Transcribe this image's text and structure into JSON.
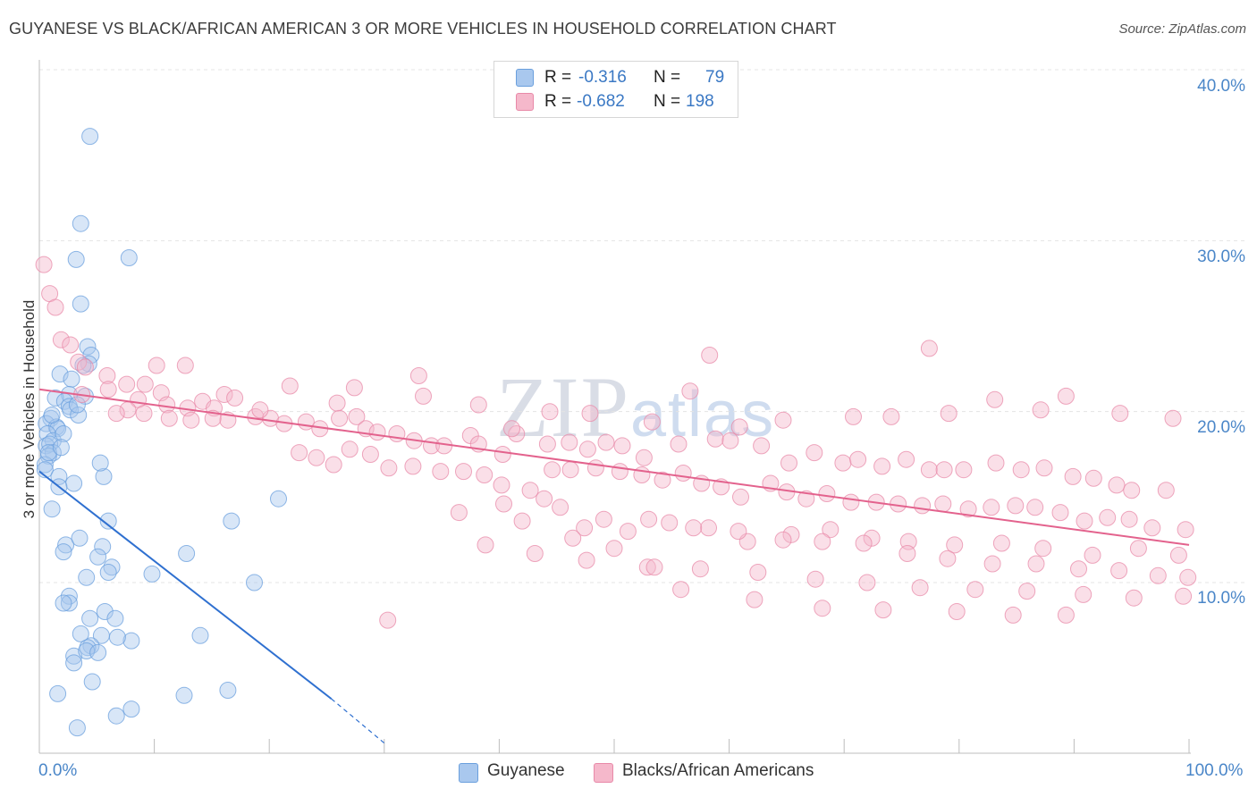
{
  "header": {
    "title": "GUYANESE VS BLACK/AFRICAN AMERICAN 3 OR MORE VEHICLES IN HOUSEHOLD CORRELATION CHART",
    "source": "Source: ZipAtlas.com"
  },
  "watermark": {
    "zip": "ZIP",
    "atlas": "atlas"
  },
  "legend": {
    "rows": [
      {
        "r_label": "R =",
        "r_value": "-0.316",
        "n_label": "N =",
        "n_value": "79",
        "color": "#a9c8ee"
      },
      {
        "r_label": "R =",
        "r_value": "-0.682",
        "n_label": "N =",
        "n_value": "198",
        "color": "#f5b8cb"
      }
    ]
  },
  "bottom_legend": {
    "items": [
      {
        "label": "Guyanese",
        "color": "#a9c8ee"
      },
      {
        "label": "Blacks/African Americans",
        "color": "#f5b8cb"
      }
    ]
  },
  "chart_data": {
    "type": "scatter",
    "title": "GUYANESE VS BLACK/AFRICAN AMERICAN 3 OR MORE VEHICLES IN HOUSEHOLD CORRELATION CHART",
    "xlabel": "",
    "ylabel": "3 or more Vehicles in Household",
    "xlim": [
      0,
      100
    ],
    "ylim": [
      0,
      40
    ],
    "x_tick_labels": [
      "0.0%",
      "100.0%"
    ],
    "y_ticks": [
      10,
      20,
      30,
      40
    ],
    "y_tick_labels": [
      "10.0%",
      "20.0%",
      "30.0%",
      "40.0%"
    ],
    "grid": true,
    "legend_position": "top-center",
    "series": [
      {
        "name": "Guyanese",
        "color": "#6a9fdd",
        "fill": "#a9c8ee",
        "trend_color": "#2f70d0",
        "trend": {
          "x0": 0,
          "y0": 16.5,
          "x1": 25.4,
          "y1": 3.2,
          "dash_to_x": 30.2,
          "dash_to_y": 0.5
        },
        "points": [
          [
            4.4,
            36.1
          ],
          [
            3.6,
            31.0
          ],
          [
            3.2,
            28.9
          ],
          [
            7.8,
            29.0
          ],
          [
            3.6,
            26.3
          ],
          [
            4.2,
            23.8
          ],
          [
            4.5,
            23.3
          ],
          [
            4.3,
            22.8
          ],
          [
            3.8,
            22.7
          ],
          [
            1.8,
            22.2
          ],
          [
            2.8,
            21.9
          ],
          [
            2.6,
            21.0
          ],
          [
            1.4,
            20.8
          ],
          [
            2.2,
            20.6
          ],
          [
            2.6,
            20.3
          ],
          [
            2.7,
            20.1
          ],
          [
            3.4,
            19.8
          ],
          [
            1.0,
            19.6
          ],
          [
            0.6,
            19.3
          ],
          [
            1.5,
            19.1
          ],
          [
            1.6,
            19.0
          ],
          [
            0.7,
            18.7
          ],
          [
            1.2,
            18.3
          ],
          [
            0.6,
            18.0
          ],
          [
            0.9,
            18.1
          ],
          [
            1.2,
            17.6
          ],
          [
            0.8,
            17.4
          ],
          [
            0.5,
            16.9
          ],
          [
            0.5,
            16.6
          ],
          [
            1.7,
            16.2
          ],
          [
            5.6,
            16.2
          ],
          [
            3.0,
            15.8
          ],
          [
            1.7,
            15.6
          ],
          [
            5.3,
            17.0
          ],
          [
            1.1,
            14.3
          ],
          [
            20.8,
            14.9
          ],
          [
            6.0,
            13.6
          ],
          [
            16.7,
            13.6
          ],
          [
            2.3,
            12.2
          ],
          [
            3.5,
            12.6
          ],
          [
            5.5,
            12.1
          ],
          [
            2.1,
            11.8
          ],
          [
            5.1,
            11.5
          ],
          [
            12.8,
            11.7
          ],
          [
            6.3,
            10.9
          ],
          [
            6.0,
            10.6
          ],
          [
            4.1,
            10.3
          ],
          [
            9.8,
            10.5
          ],
          [
            18.7,
            10.0
          ],
          [
            2.6,
            9.2
          ],
          [
            2.6,
            8.8
          ],
          [
            2.1,
            8.8
          ],
          [
            5.7,
            8.3
          ],
          [
            6.6,
            7.9
          ],
          [
            4.4,
            7.9
          ],
          [
            3.6,
            7.0
          ],
          [
            5.4,
            6.9
          ],
          [
            8.0,
            6.6
          ],
          [
            14.0,
            6.9
          ],
          [
            6.8,
            6.8
          ],
          [
            4.5,
            6.3
          ],
          [
            4.2,
            6.2
          ],
          [
            3.0,
            5.7
          ],
          [
            4.1,
            6.0
          ],
          [
            5.1,
            5.9
          ],
          [
            3.0,
            5.3
          ],
          [
            4.6,
            4.2
          ],
          [
            1.6,
            3.5
          ],
          [
            12.6,
            3.4
          ],
          [
            16.4,
            3.7
          ],
          [
            8.0,
            2.6
          ],
          [
            6.7,
            2.2
          ],
          [
            3.3,
            1.5
          ],
          [
            1.1,
            19.8
          ],
          [
            2.1,
            18.7
          ],
          [
            4.0,
            20.9
          ],
          [
            0.8,
            17.6
          ],
          [
            1.9,
            17.9
          ],
          [
            3.3,
            20.4
          ]
        ]
      },
      {
        "name": "Blacks/African Americans",
        "color": "#e889a8",
        "fill": "#f5b8cb",
        "trend_color": "#e3628d",
        "trend": {
          "x0": 0,
          "y0": 21.3,
          "x1": 100,
          "y1": 12.2
        },
        "points": [
          [
            0.4,
            28.6
          ],
          [
            0.9,
            26.9
          ],
          [
            1.4,
            26.1
          ],
          [
            1.9,
            24.2
          ],
          [
            2.7,
            23.9
          ],
          [
            3.4,
            22.9
          ],
          [
            4.0,
            22.6
          ],
          [
            5.9,
            22.1
          ],
          [
            10.2,
            22.7
          ],
          [
            12.7,
            22.7
          ],
          [
            7.6,
            21.6
          ],
          [
            9.2,
            21.6
          ],
          [
            6.0,
            21.3
          ],
          [
            10.6,
            21.1
          ],
          [
            3.7,
            21.0
          ],
          [
            8.6,
            20.7
          ],
          [
            16.1,
            21.0
          ],
          [
            17.0,
            20.8
          ],
          [
            14.2,
            20.6
          ],
          [
            11.1,
            20.4
          ],
          [
            12.9,
            20.2
          ],
          [
            15.2,
            20.2
          ],
          [
            7.7,
            20.1
          ],
          [
            9.1,
            19.9
          ],
          [
            6.7,
            19.9
          ],
          [
            11.3,
            19.6
          ],
          [
            13.2,
            19.5
          ],
          [
            16.4,
            19.5
          ],
          [
            18.8,
            19.7
          ],
          [
            20.1,
            19.6
          ],
          [
            21.3,
            19.3
          ],
          [
            23.2,
            19.4
          ],
          [
            24.4,
            19.0
          ],
          [
            26.1,
            19.6
          ],
          [
            27.6,
            19.7
          ],
          [
            28.4,
            19.0
          ],
          [
            29.4,
            18.8
          ],
          [
            31.1,
            18.7
          ],
          [
            32.6,
            18.3
          ],
          [
            34.1,
            18.0
          ],
          [
            35.2,
            18.0
          ],
          [
            37.5,
            18.6
          ],
          [
            38.2,
            18.1
          ],
          [
            40.3,
            17.5
          ],
          [
            41.5,
            18.7
          ],
          [
            44.2,
            18.1
          ],
          [
            46.1,
            18.2
          ],
          [
            47.7,
            17.8
          ],
          [
            49.3,
            18.2
          ],
          [
            50.7,
            18.0
          ],
          [
            52.6,
            17.3
          ],
          [
            55.6,
            18.1
          ],
          [
            58.8,
            18.4
          ],
          [
            60.1,
            18.3
          ],
          [
            62.8,
            18.0
          ],
          [
            65.2,
            17.0
          ],
          [
            67.4,
            17.6
          ],
          [
            69.9,
            17.0
          ],
          [
            71.2,
            17.2
          ],
          [
            73.3,
            16.8
          ],
          [
            75.4,
            17.2
          ],
          [
            77.4,
            16.6
          ],
          [
            78.7,
            16.6
          ],
          [
            80.4,
            16.6
          ],
          [
            83.2,
            17.0
          ],
          [
            85.4,
            16.6
          ],
          [
            87.4,
            16.7
          ],
          [
            89.9,
            16.2
          ],
          [
            91.7,
            16.1
          ],
          [
            93.7,
            15.7
          ],
          [
            95.0,
            15.4
          ],
          [
            98.0,
            15.4
          ],
          [
            19.2,
            20.1
          ],
          [
            21.8,
            21.5
          ],
          [
            25.9,
            20.5
          ],
          [
            27.4,
            21.4
          ],
          [
            33.4,
            20.9
          ],
          [
            38.2,
            20.4
          ],
          [
            41.1,
            19.0
          ],
          [
            44.4,
            20.0
          ],
          [
            47.9,
            19.9
          ],
          [
            53.3,
            19.4
          ],
          [
            56.6,
            21.2
          ],
          [
            60.9,
            19.1
          ],
          [
            64.7,
            19.5
          ],
          [
            70.8,
            19.7
          ],
          [
            74.1,
            19.7
          ],
          [
            79.1,
            19.9
          ],
          [
            83.1,
            20.7
          ],
          [
            87.1,
            20.1
          ],
          [
            89.3,
            20.9
          ],
          [
            94.0,
            19.9
          ],
          [
            98.6,
            19.6
          ],
          [
            33.0,
            22.1
          ],
          [
            58.3,
            23.3
          ],
          [
            77.4,
            23.7
          ],
          [
            15.1,
            19.6
          ],
          [
            22.6,
            17.6
          ],
          [
            24.1,
            17.3
          ],
          [
            25.6,
            16.9
          ],
          [
            27.0,
            17.8
          ],
          [
            28.8,
            17.5
          ],
          [
            30.4,
            16.7
          ],
          [
            32.5,
            16.8
          ],
          [
            34.9,
            16.5
          ],
          [
            36.9,
            16.5
          ],
          [
            38.7,
            16.3
          ],
          [
            40.2,
            15.7
          ],
          [
            42.7,
            15.4
          ],
          [
            44.6,
            16.6
          ],
          [
            46.2,
            16.6
          ],
          [
            48.4,
            16.7
          ],
          [
            50.5,
            16.5
          ],
          [
            52.4,
            16.3
          ],
          [
            54.2,
            16.0
          ],
          [
            56.0,
            16.4
          ],
          [
            57.6,
            15.8
          ],
          [
            59.3,
            15.6
          ],
          [
            61.0,
            15.0
          ],
          [
            63.6,
            15.8
          ],
          [
            65.0,
            15.3
          ],
          [
            66.7,
            14.9
          ],
          [
            68.5,
            15.2
          ],
          [
            70.6,
            14.7
          ],
          [
            72.8,
            14.7
          ],
          [
            74.7,
            14.6
          ],
          [
            76.8,
            14.5
          ],
          [
            78.6,
            14.6
          ],
          [
            80.8,
            14.3
          ],
          [
            82.8,
            14.4
          ],
          [
            84.9,
            14.5
          ],
          [
            86.6,
            14.4
          ],
          [
            88.8,
            14.1
          ],
          [
            90.9,
            13.6
          ],
          [
            92.9,
            13.8
          ],
          [
            94.8,
            13.7
          ],
          [
            96.8,
            13.2
          ],
          [
            99.7,
            13.1
          ],
          [
            40.4,
            14.6
          ],
          [
            43.9,
            14.9
          ],
          [
            47.4,
            13.2
          ],
          [
            51.2,
            13.0
          ],
          [
            54.8,
            13.5
          ],
          [
            58.2,
            13.2
          ],
          [
            61.6,
            12.4
          ],
          [
            65.4,
            12.8
          ],
          [
            68.8,
            13.1
          ],
          [
            72.4,
            12.6
          ],
          [
            75.6,
            12.4
          ],
          [
            79.6,
            12.2
          ],
          [
            83.7,
            12.3
          ],
          [
            87.3,
            12.0
          ],
          [
            91.6,
            11.6
          ],
          [
            95.6,
            12.0
          ],
          [
            99.1,
            11.6
          ],
          [
            45.3,
            14.4
          ],
          [
            49.1,
            13.7
          ],
          [
            53.0,
            13.7
          ],
          [
            56.9,
            13.2
          ],
          [
            60.8,
            13.0
          ],
          [
            64.7,
            12.5
          ],
          [
            68.1,
            12.4
          ],
          [
            71.7,
            12.3
          ],
          [
            75.5,
            11.7
          ],
          [
            79.0,
            11.4
          ],
          [
            82.9,
            11.1
          ],
          [
            86.7,
            11.1
          ],
          [
            90.4,
            10.8
          ],
          [
            93.9,
            10.7
          ],
          [
            97.3,
            10.4
          ],
          [
            99.9,
            10.3
          ],
          [
            38.8,
            12.2
          ],
          [
            43.1,
            11.7
          ],
          [
            47.6,
            11.3
          ],
          [
            52.9,
            10.9
          ],
          [
            57.5,
            10.8
          ],
          [
            62.5,
            10.6
          ],
          [
            67.5,
            10.2
          ],
          [
            72.0,
            10.0
          ],
          [
            76.6,
            9.7
          ],
          [
            81.4,
            9.6
          ],
          [
            85.9,
            9.5
          ],
          [
            90.8,
            9.3
          ],
          [
            95.2,
            9.1
          ],
          [
            99.5,
            9.2
          ],
          [
            55.8,
            9.6
          ],
          [
            62.2,
            9.0
          ],
          [
            68.1,
            8.5
          ],
          [
            73.4,
            8.4
          ],
          [
            79.8,
            8.3
          ],
          [
            84.7,
            8.1
          ],
          [
            89.3,
            8.1
          ],
          [
            30.3,
            7.8
          ],
          [
            36.5,
            14.1
          ],
          [
            42.0,
            13.6
          ],
          [
            46.4,
            12.6
          ],
          [
            50.0,
            12.0
          ],
          [
            53.5,
            10.9
          ]
        ]
      }
    ]
  }
}
